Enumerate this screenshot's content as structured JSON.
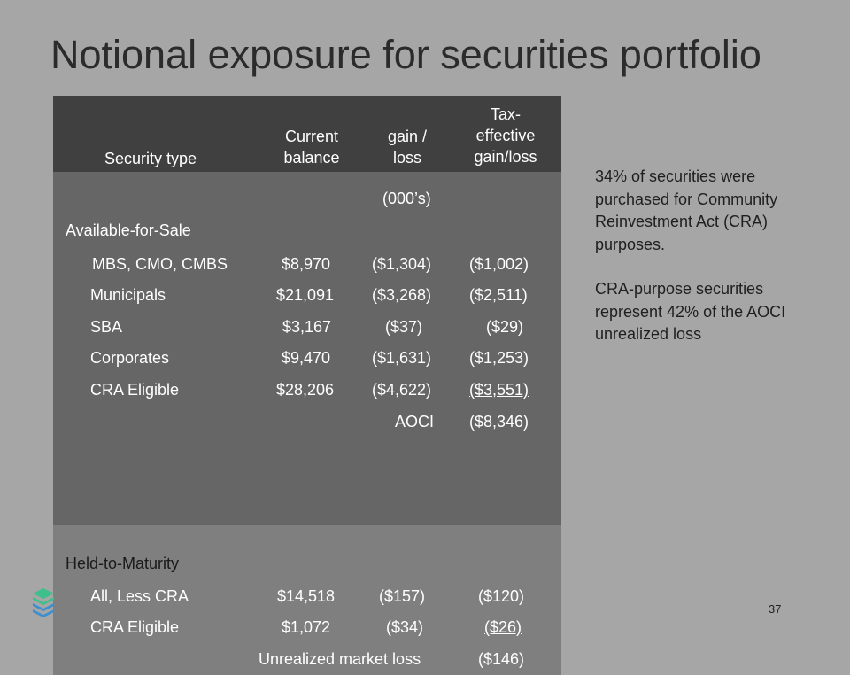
{
  "title": "Notional exposure for securities portfolio",
  "table": {
    "headers": {
      "security_type": "Security type",
      "current_balance_l1": "Current",
      "current_balance_l2": "balance",
      "gain_loss_l1": "gain /",
      "gain_loss_l2": "loss",
      "tax_l1": "Tax-",
      "tax_l2": "effective",
      "tax_l3": "gain/loss"
    },
    "units": "(000’s)",
    "afs": {
      "label": "Available-for-Sale",
      "rows": [
        {
          "type": "MBS, CMO, CMBS",
          "balance": "$8,970",
          "gain": "($1,304)",
          "tax": "($1,002)"
        },
        {
          "type": "Municipals",
          "balance": "$21,091",
          "gain": "($3,268)",
          "tax": "($2,511)"
        },
        {
          "type": "SBA",
          "balance": "$3,167",
          "gain": "($37)",
          "tax": "($29)"
        },
        {
          "type": "Corporates",
          "balance": "$9,470",
          "gain": "($1,631)",
          "tax": "($1,253)"
        },
        {
          "type": "CRA Eligible",
          "balance": "$28,206",
          "gain": "($4,622)",
          "tax": "($3,551)"
        }
      ],
      "total_label": "AOCI",
      "total_value": "($8,346)"
    },
    "htm": {
      "label": "Held-to-Maturity",
      "rows": [
        {
          "type": "All, Less CRA",
          "balance": "$14,518",
          "gain": "($157)",
          "tax": "($120)"
        },
        {
          "type": "CRA Eligible",
          "balance": "$1,072",
          "gain": "($34)",
          "tax": "($26)"
        }
      ],
      "total_label": "Unrealized market loss",
      "total_value": "($146)"
    }
  },
  "side_notes": {
    "note1": "34% of securities were purchased for Community Reinvestment Act (CRA) purposes.",
    "note2": "CRA-purpose securities represent 42% of the AOCI unrealized loss"
  },
  "page_number": "37",
  "colors": {
    "background": "#a6a6a6",
    "header_fill": "#404040",
    "afs_fill": "#666666",
    "htm_fill": "#7f7f7f",
    "logo_green": "#3fbf8c",
    "logo_blue": "#3a8fd1"
  },
  "logo_icon": "stacked-layers-logo-icon"
}
